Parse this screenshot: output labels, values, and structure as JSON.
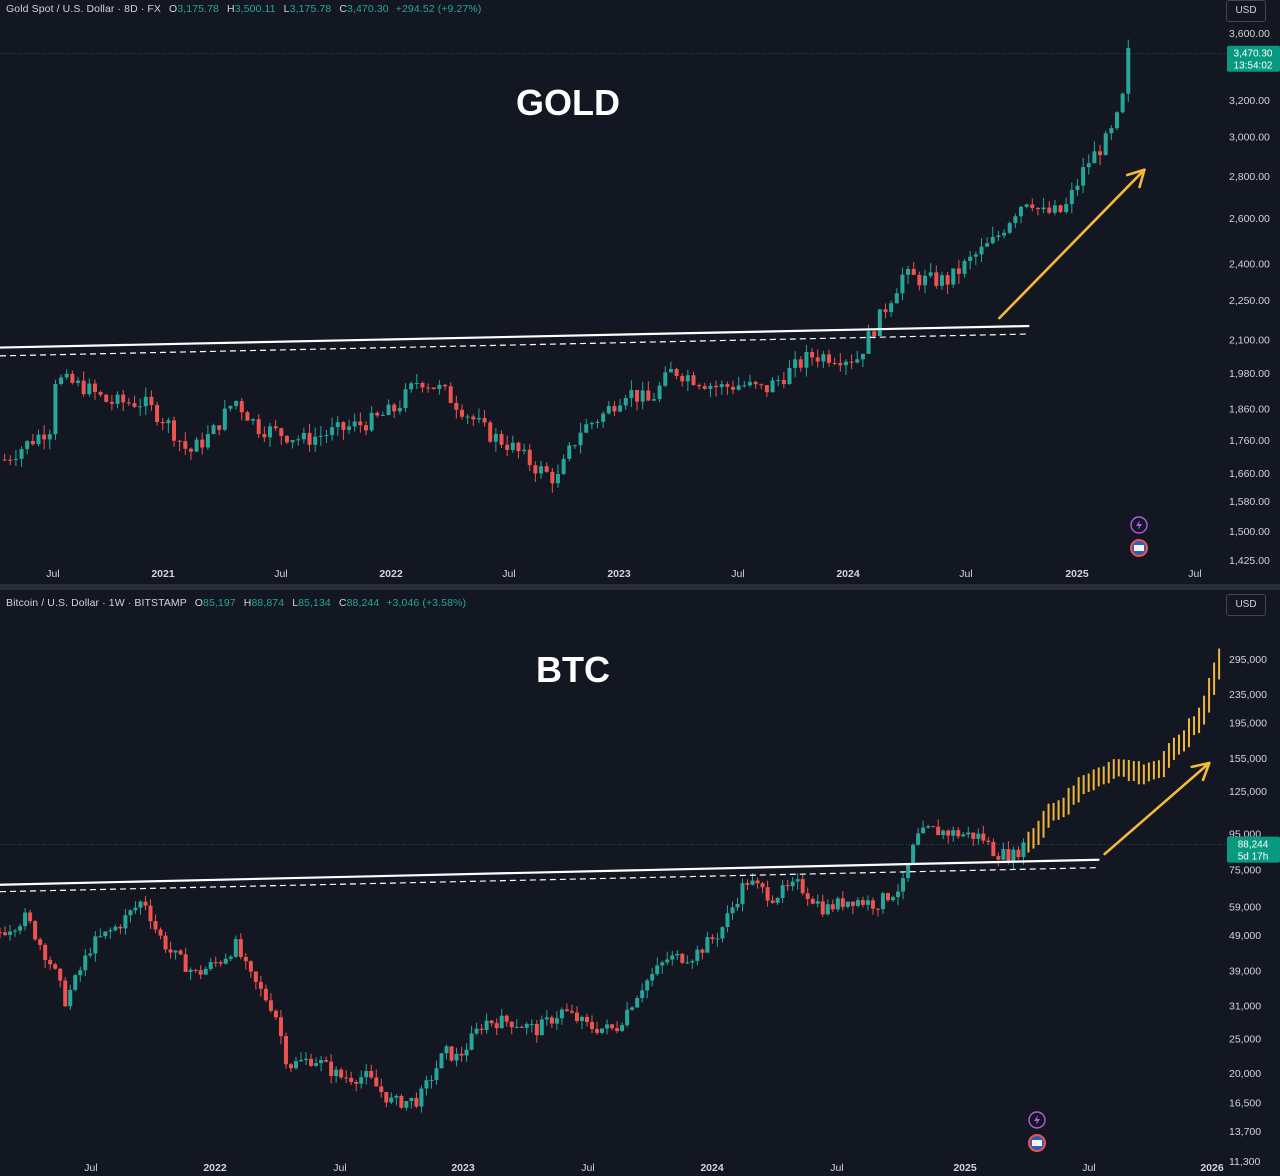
{
  "colors": {
    "background": "#131722",
    "up": "#26a69a",
    "down": "#ef5350",
    "projection": "#f0b53b",
    "trendline": "#ffffff",
    "arrow": "#f5b93a",
    "axis_text": "#d1d4dc"
  },
  "gold": {
    "legend": {
      "symbol": "Gold Spot / U.S. Dollar · 8D · FX",
      "o_label": "O",
      "o": "3,175.78",
      "h_label": "H",
      "h": "3,500.11",
      "l_label": "L",
      "l": "3,175.78",
      "c_label": "C",
      "c": "3,470.30",
      "change": "+294.52 (+9.27%)"
    },
    "currency": "USD",
    "title": "GOLD",
    "price_tag": {
      "value": "3,470.30",
      "countdown": "13:54:02"
    },
    "icons": [
      "lightning-icon",
      "us-flag-icon"
    ],
    "chart_data": {
      "type": "candlestick",
      "title": "GOLD",
      "x_tick_labels": [
        "Jul",
        "2021",
        "Jul",
        "2022",
        "Jul",
        "2023",
        "Jul",
        "2024",
        "Jul",
        "2025",
        "Jul"
      ],
      "y_tick_labels": [
        "3,600.00",
        "3,200.00",
        "3,000.00",
        "2,800.00",
        "2,600.00",
        "2,400.00",
        "2,250.00",
        "2,100.00",
        "1,980.00",
        "1,860.00",
        "1,760.00",
        "1,660.00",
        "1,580.00",
        "1,500.00",
        "1,425.00"
      ],
      "y_scale": "log",
      "ylim": [
        1400,
        3650
      ],
      "xlim": [
        2020.38,
        2025.7
      ],
      "close_path": [
        [
          2020.4,
          1700
        ],
        [
          2020.6,
          1800
        ],
        [
          2020.62,
          1960
        ],
        [
          2020.75,
          1930
        ],
        [
          2020.85,
          1880
        ],
        [
          2021.0,
          1880
        ],
        [
          2021.1,
          1820
        ],
        [
          2021.2,
          1720
        ],
        [
          2021.3,
          1780
        ],
        [
          2021.4,
          1890
        ],
        [
          2021.5,
          1800
        ],
        [
          2021.7,
          1760
        ],
        [
          2021.9,
          1800
        ],
        [
          2022.0,
          1820
        ],
        [
          2022.1,
          1860
        ],
        [
          2022.2,
          1960
        ],
        [
          2022.3,
          1920
        ],
        [
          2022.4,
          1850
        ],
        [
          2022.5,
          1780
        ],
        [
          2022.6,
          1740
        ],
        [
          2022.7,
          1680
        ],
        [
          2022.8,
          1640
        ],
        [
          2022.85,
          1720
        ],
        [
          2022.9,
          1790
        ],
        [
          2023.0,
          1840
        ],
        [
          2023.1,
          1920
        ],
        [
          2023.2,
          1880
        ],
        [
          2023.3,
          1990
        ],
        [
          2023.4,
          1960
        ],
        [
          2023.5,
          1930
        ],
        [
          2023.6,
          1940
        ],
        [
          2023.7,
          1920
        ],
        [
          2023.8,
          1980
        ],
        [
          2023.9,
          2040
        ],
        [
          2024.0,
          2040
        ],
        [
          2024.1,
          2030
        ],
        [
          2024.2,
          2180
        ],
        [
          2024.3,
          2350
        ],
        [
          2024.4,
          2330
        ],
        [
          2024.5,
          2330
        ],
        [
          2024.6,
          2420
        ],
        [
          2024.7,
          2500
        ],
        [
          2024.8,
          2650
        ],
        [
          2024.85,
          2700
        ],
        [
          2024.9,
          2620
        ],
        [
          2025.0,
          2630
        ],
        [
          2025.1,
          2860
        ],
        [
          2025.2,
          3000
        ],
        [
          2025.25,
          3150
        ],
        [
          2025.28,
          3470
        ]
      ],
      "high": "3,500.11",
      "low": "3,175.78",
      "last": "3,470.30",
      "trendline_solid": [
        [
          2020.38,
          2070
        ],
        [
          2024.85,
          2150
        ]
      ],
      "trendline_dashed": [
        [
          2020.38,
          2040
        ],
        [
          2024.85,
          2120
        ]
      ],
      "arrow": [
        [
          2024.72,
          2180
        ],
        [
          2025.35,
          2830
        ]
      ]
    }
  },
  "btc": {
    "legend": {
      "symbol": "Bitcoin / U.S. Dollar · 1W · BITSTAMP",
      "o_label": "O",
      "o": "85,197",
      "h_label": "H",
      "h": "88,874",
      "l_label": "L",
      "l": "85,134",
      "c_label": "C",
      "c": "88,244",
      "change": "+3,046 (+3.58%)"
    },
    "currency": "USD",
    "title": "BTC",
    "price_tag": {
      "value": "88,244",
      "countdown": "5d 17h"
    },
    "icons": [
      "lightning-icon",
      "us-flag-icon"
    ],
    "chart_data": {
      "type": "candlestick",
      "title": "BTC",
      "x_tick_labels": [
        "Jul",
        "2022",
        "Jul",
        "2023",
        "Jul",
        "2024",
        "Jul",
        "2025",
        "Jul",
        "2026"
      ],
      "y_tick_labels": [
        "295,000",
        "235,000",
        "195,000",
        "155,000",
        "125,000",
        "95,000",
        "75,000",
        "59,000",
        "49,000",
        "39,000",
        "31,000",
        "25,000",
        "20,000",
        "16,500",
        "13,700",
        "11,300"
      ],
      "y_scale": "log",
      "ylim": [
        11000,
        380000
      ],
      "xlim": [
        2021.35,
        2026.03
      ],
      "close_path": [
        [
          2021.35,
          50000
        ],
        [
          2021.45,
          55000
        ],
        [
          2021.55,
          40000
        ],
        [
          2021.6,
          32000
        ],
        [
          2021.65,
          38000
        ],
        [
          2021.7,
          46000
        ],
        [
          2021.8,
          52000
        ],
        [
          2021.9,
          62000
        ],
        [
          2021.95,
          50000
        ],
        [
          2022.0,
          44000
        ],
        [
          2022.1,
          38000
        ],
        [
          2022.2,
          42000
        ],
        [
          2022.25,
          46000
        ],
        [
          2022.3,
          38000
        ],
        [
          2022.4,
          30000
        ],
        [
          2022.45,
          21000
        ],
        [
          2022.55,
          22000
        ],
        [
          2022.65,
          19500
        ],
        [
          2022.75,
          19500
        ],
        [
          2022.85,
          16500
        ],
        [
          2022.95,
          16800
        ],
        [
          2023.05,
          23000
        ],
        [
          2023.1,
          22000
        ],
        [
          2023.2,
          28000
        ],
        [
          2023.3,
          28000
        ],
        [
          2023.4,
          26500
        ],
        [
          2023.5,
          30000
        ],
        [
          2023.6,
          27000
        ],
        [
          2023.7,
          26500
        ],
        [
          2023.8,
          35000
        ],
        [
          2023.9,
          42000
        ],
        [
          2024.0,
          43000
        ],
        [
          2024.1,
          50000
        ],
        [
          2024.2,
          70000
        ],
        [
          2024.3,
          63000
        ],
        [
          2024.4,
          68000
        ],
        [
          2024.5,
          58000
        ],
        [
          2024.6,
          62000
        ],
        [
          2024.7,
          60000
        ],
        [
          2024.8,
          68000
        ],
        [
          2024.85,
          92000
        ],
        [
          2024.9,
          97000
        ],
        [
          2025.0,
          95000
        ],
        [
          2025.1,
          93000
        ],
        [
          2025.15,
          84000
        ],
        [
          2025.22,
          82000
        ],
        [
          2025.26,
          88244
        ]
      ],
      "projection_path": [
        [
          2025.26,
          88244
        ],
        [
          2025.3,
          95000
        ],
        [
          2025.35,
          108000
        ],
        [
          2025.42,
          115000
        ],
        [
          2025.48,
          130000
        ],
        [
          2025.55,
          140000
        ],
        [
          2025.62,
          145000
        ],
        [
          2025.7,
          140000
        ],
        [
          2025.78,
          145000
        ],
        [
          2025.85,
          170000
        ],
        [
          2025.92,
          195000
        ],
        [
          2025.96,
          230000
        ],
        [
          2026.0,
          300000
        ]
      ],
      "high": "88,874",
      "low": "85,134",
      "last": "88,244",
      "trendline_solid": [
        [
          2021.35,
          68000
        ],
        [
          2025.55,
          80000
        ]
      ],
      "trendline_dashed": [
        [
          2021.35,
          65000
        ],
        [
          2025.55,
          76000
        ]
      ],
      "arrow": [
        [
          2025.57,
          83000
        ],
        [
          2025.97,
          150000
        ]
      ]
    }
  }
}
